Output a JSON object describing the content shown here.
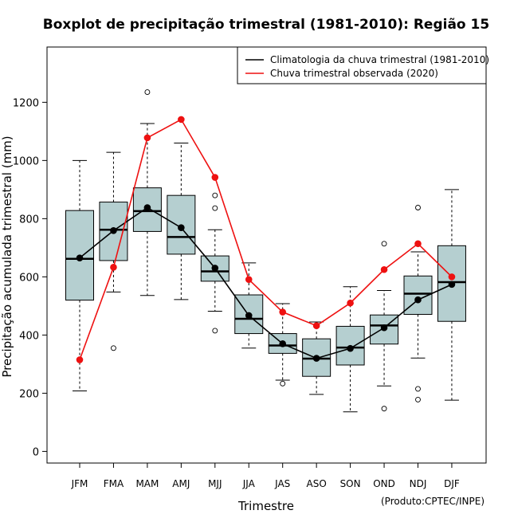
{
  "chart_data": {
    "type": "boxplot+line",
    "title": "Boxplot de precipitação trimestral (1981-2010): Região 15",
    "xlabel": "Trimestre",
    "ylabel": "Precipitação acumulada trimestral (mm)",
    "credit": "(Produto:CPTEC/INPE)",
    "ylim": [
      -40,
      1390
    ],
    "yticks": [
      0,
      200,
      400,
      600,
      800,
      1000,
      1200
    ],
    "ytick_labels": [
      "0",
      "200",
      "400",
      "600",
      "800",
      "1000",
      "1200"
    ],
    "categories": [
      "JFM",
      "FMA",
      "MAM",
      "AMJ",
      "MJJ",
      "JJA",
      "JAS",
      "ASO",
      "SON",
      "OND",
      "NDJ",
      "DJF"
    ],
    "box_color": "#b5cfd0",
    "boxes": [
      {
        "whisker_low": 208,
        "q1": 520,
        "median": 662,
        "q3": 828,
        "whisker_high": 1000,
        "outliers": []
      },
      {
        "whisker_low": 548,
        "q1": 656,
        "median": 762,
        "q3": 857,
        "whisker_high": 1028,
        "outliers": [
          355
        ]
      },
      {
        "whisker_low": 536,
        "q1": 756,
        "median": 826,
        "q3": 906,
        "whisker_high": 1127,
        "outliers": [
          1235
        ]
      },
      {
        "whisker_low": 522,
        "q1": 678,
        "median": 737,
        "q3": 880,
        "whisker_high": 1060,
        "outliers": []
      },
      {
        "whisker_low": 482,
        "q1": 585,
        "median": 619,
        "q3": 672,
        "whisker_high": 762,
        "outliers": [
          415,
          836,
          880
        ]
      },
      {
        "whisker_low": 355,
        "q1": 405,
        "median": 456,
        "q3": 538,
        "whisker_high": 648,
        "outliers": []
      },
      {
        "whisker_low": 245,
        "q1": 337,
        "median": 364,
        "q3": 405,
        "whisker_high": 508,
        "outliers": [
          233
        ]
      },
      {
        "whisker_low": 196,
        "q1": 258,
        "median": 319,
        "q3": 387,
        "whisker_high": 445,
        "outliers": []
      },
      {
        "whisker_low": 136,
        "q1": 297,
        "median": 357,
        "q3": 430,
        "whisker_high": 566,
        "outliers": []
      },
      {
        "whisker_low": 225,
        "q1": 369,
        "median": 433,
        "q3": 469,
        "whisker_high": 553,
        "outliers": [
          147,
          714
        ]
      },
      {
        "whisker_low": 321,
        "q1": 471,
        "median": 542,
        "q3": 603,
        "whisker_high": 686,
        "outliers": [
          178,
          215,
          838
        ]
      },
      {
        "whisker_low": 176,
        "q1": 447,
        "median": 582,
        "q3": 707,
        "whisker_high": 900,
        "outliers": []
      }
    ],
    "series": [
      {
        "name": "Climatologia da chuva trimestral (1981-2010)",
        "color": "#000000",
        "values": [
          665,
          759,
          838,
          769,
          630,
          467,
          370,
          320,
          354,
          425,
          521,
          574
        ]
      },
      {
        "name": "Chuva trimestral observada (2020)",
        "color": "#ee1111",
        "values": [
          315,
          633,
          1078,
          1141,
          942,
          591,
          479,
          432,
          510,
          625,
          714,
          600
        ]
      }
    ],
    "legend_position": "top-right"
  }
}
